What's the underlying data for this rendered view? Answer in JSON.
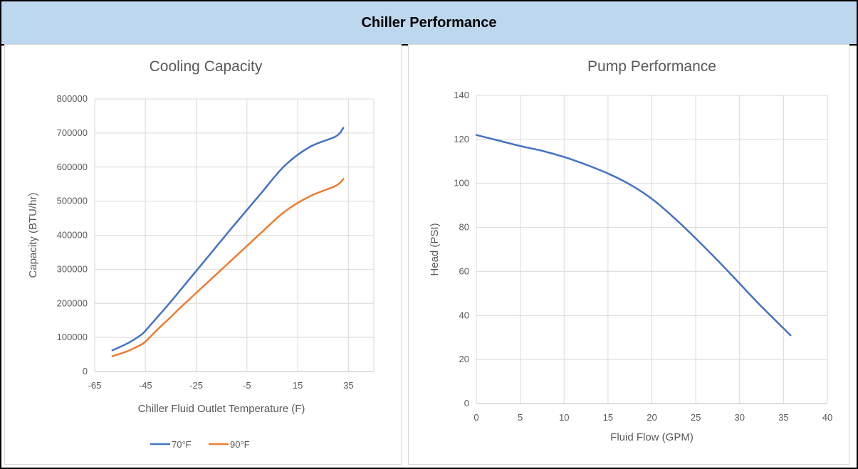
{
  "header": {
    "title": "Chiller Performance"
  },
  "chart_data": [
    {
      "type": "line",
      "title": "Cooling Capacity",
      "xlabel": "Chiller Fluid Outlet Temperature (F)",
      "ylabel": "Capacity (BTU/hr)",
      "xlim": [
        -65,
        45
      ],
      "ylim": [
        0,
        800000
      ],
      "x_ticks": [
        -65,
        -45,
        -25,
        -5,
        15,
        35
      ],
      "y_ticks": [
        0,
        100000,
        200000,
        300000,
        400000,
        500000,
        600000,
        700000,
        800000
      ],
      "grid": true,
      "legend_position": "bottom",
      "series": [
        {
          "name": "70°F",
          "color": "#4472c4",
          "x": [
            -58,
            -55,
            -52,
            -49,
            -46,
            -44,
            -40,
            -35,
            -30,
            -20,
            -10,
            0,
            10,
            20,
            30,
            33
          ],
          "y": [
            62000,
            72000,
            83000,
            96000,
            112000,
            128000,
            162000,
            205000,
            250000,
            340000,
            430000,
            518000,
            605000,
            660000,
            690000,
            715000
          ]
        },
        {
          "name": "90°F",
          "color": "#ed7d31",
          "x": [
            -58,
            -55,
            -52,
            -49,
            -46,
            -44,
            -40,
            -35,
            -30,
            -20,
            -10,
            0,
            10,
            20,
            30,
            33
          ],
          "y": [
            45000,
            52000,
            60000,
            70000,
            82000,
            95000,
            125000,
            160000,
            196000,
            265000,
            334000,
            403000,
            470000,
            515000,
            545000,
            565000
          ]
        }
      ]
    },
    {
      "type": "line",
      "title": "Pump Performance",
      "xlabel": "Fluid Flow (GPM)",
      "ylabel": "Head (PSI)",
      "xlim": [
        0,
        40
      ],
      "ylim": [
        0,
        140
      ],
      "x_ticks": [
        0,
        5,
        10,
        15,
        20,
        25,
        30,
        35,
        40
      ],
      "y_ticks": [
        0,
        20,
        40,
        60,
        80,
        100,
        120,
        140
      ],
      "grid": true,
      "series": [
        {
          "color": "#4472c4",
          "x": [
            0,
            2.5,
            5,
            7.5,
            10,
            12.5,
            15,
            17.5,
            20,
            22.5,
            25,
            27.5,
            30,
            32.5,
            35.8
          ],
          "y": [
            122,
            119.5,
            117,
            114.8,
            112,
            108.5,
            104.5,
            99.5,
            93,
            84.5,
            75,
            65,
            54.5,
            44,
            31
          ]
        }
      ]
    }
  ]
}
